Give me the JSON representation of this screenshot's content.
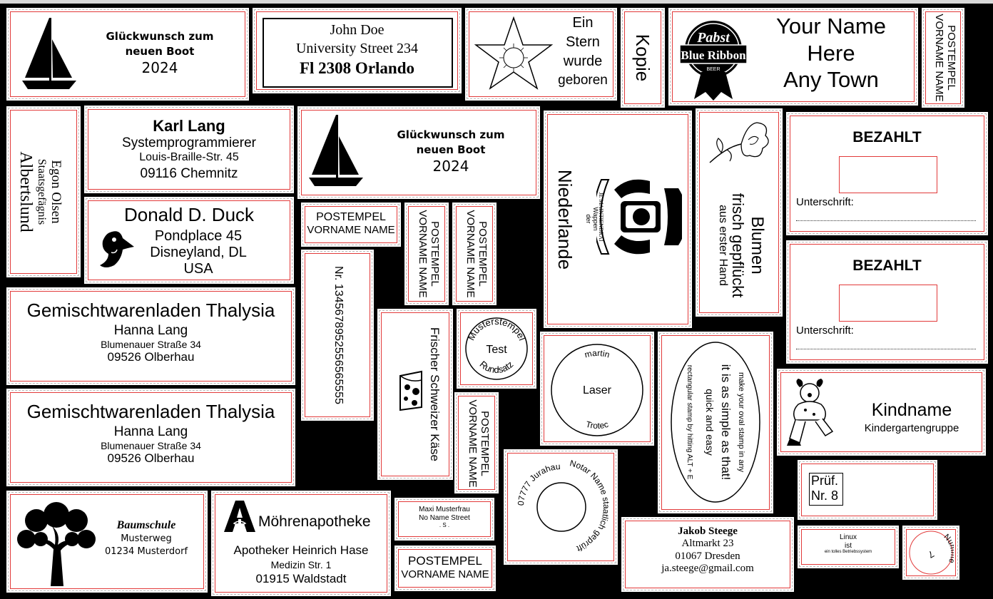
{
  "boot1": {
    "line1": "Glückwunsch zum",
    "line2": "neuen Boot",
    "year": "2024"
  },
  "boot2": {
    "line1": "Glückwunsch zum",
    "line2": "neuen Boot",
    "year": "2024"
  },
  "johndoe": {
    "name": "John Doe",
    "street": "University Street 234",
    "city": "Fl 2308 Orlando"
  },
  "stern": {
    "l1": "Ein",
    "l2": "Stern",
    "l3": "wurde",
    "l4": "geboren"
  },
  "kopie": {
    "text": "Kopie"
  },
  "pabst": {
    "logo_top": "Pabst",
    "logo_main": "Blue Ribbon",
    "logo_small": "BEER",
    "l1": "Your Name",
    "l2": "Here",
    "l3": "Any Town"
  },
  "postempel": {
    "line1": "POSTEMPEL",
    "line2": "VORNAME NAME"
  },
  "egon": {
    "l1": "Egon Olsen",
    "l2": "Staatsgefägnis",
    "l3": "Albertslund"
  },
  "karl": {
    "name": "Karl Lang",
    "job": "Systemprogrammierer",
    "street": "Louis-Braille-Str. 45",
    "city": "09116 Chemnitz"
  },
  "donald": {
    "name": "Donald D. Duck",
    "street": "Pondplace 45",
    "city": "Disneyland, DL",
    "country": "USA"
  },
  "thalysia": {
    "title": "Gemischtwarenladen Thalysia",
    "name": "Hanna Lang",
    "street": "Blumenauer Straße 34",
    "city": "09526 Olberhau"
  },
  "nr": {
    "text": "Nr. 1345678952556565555"
  },
  "schweizer": {
    "text": "Frischer Schweizer Käse"
  },
  "muster": {
    "top": "Musterstempel",
    "center": "Test",
    "bottom": "Rundsatz"
  },
  "niederlande": {
    "big": "Niederlande",
    "small1": "Wappen",
    "small2": "der",
    "motto": "JE MAINTIENDRAI"
  },
  "blumen": {
    "l1": "Blumen",
    "l2": "frisch gepflückt",
    "l3": "aus erster Hand"
  },
  "bezahlt": {
    "title": "BEZAHLT",
    "sig": "Unterschrift:"
  },
  "laser": {
    "top": "martin",
    "center": "Laser",
    "bottom": "Trotec"
  },
  "oval": {
    "outer": "make your oval stamp in any",
    "l1": "it is as simple as that!",
    "l2": "quick and easy",
    "inner": "rectangular stamp by hitting ALT + E"
  },
  "kind": {
    "name": "Kindname",
    "group": "Kindergartengruppe"
  },
  "notar": {
    "outer": "Notar Name staatlich geprüft",
    "inner": "07777 Jurahausen"
  },
  "pruef": {
    "l1": "Prüf.",
    "l2": "Nr. 8"
  },
  "baum": {
    "title": "Baumschule",
    "street": "Musterweg",
    "city": "01234 Musterdorf"
  },
  "apotheke": {
    "name": "Möhrenapotheke",
    "owner": "Apotheker Heinrich Hase",
    "street": "Medizin Str. 1",
    "city": "01915 Waldstadt"
  },
  "maxi": {
    "l1": "Maxi Musterfrau",
    "l2": "No Name Street",
    "l3": ". S ."
  },
  "jakob": {
    "name": "Jakob Steege",
    "street": "Altmarkt 23",
    "city": "01067 Dresden",
    "mail": "ja.steege@gmail.com"
  },
  "linux": {
    "l1": "Linux",
    "l2": "ist",
    "l3": "ein tolles Betriebssystem"
  },
  "nummer": {
    "text": "Nummer",
    "num": "7"
  },
  "colors": {
    "background": "#000000",
    "stamp": "#ffffff",
    "guide_red": "#e23a3a"
  },
  "icons": [
    "sailboat-icon",
    "star-icon",
    "pabst-logo-icon",
    "duck-icon",
    "cheese-icon",
    "coat-of-arms-icon",
    "flower-icon",
    "clown-icon",
    "tree-icon",
    "pharmacy-a-icon"
  ]
}
